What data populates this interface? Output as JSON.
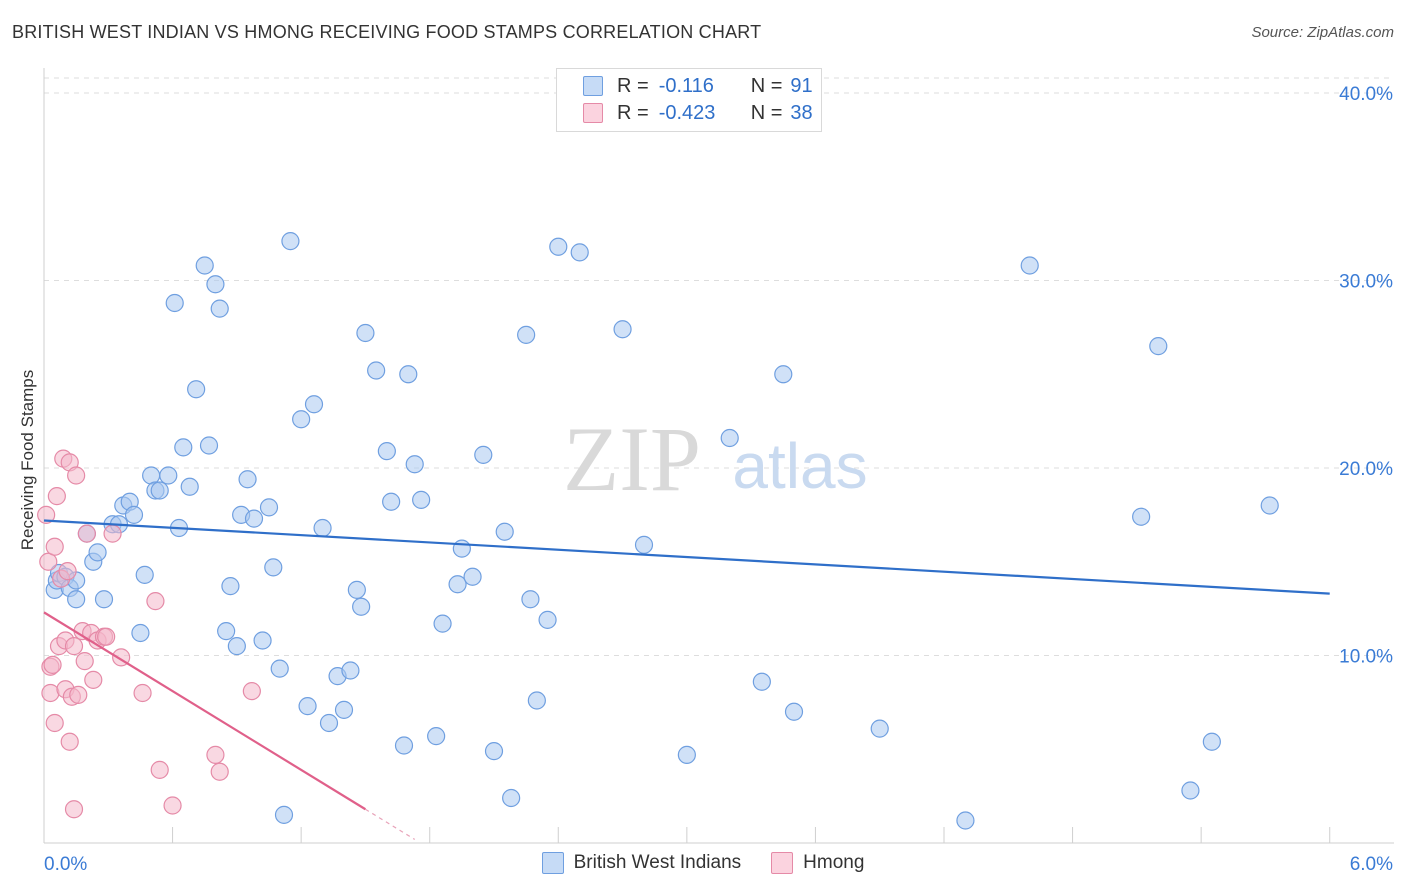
{
  "header": {
    "title": "BRITISH WEST INDIAN VS HMONG RECEIVING FOOD STAMPS CORRELATION CHART",
    "source": "Source: ZipAtlas.com"
  },
  "watermark": {
    "zip": "ZIP",
    "atlas": "atlas"
  },
  "legend_top": {
    "r_label": "R =",
    "n_label": "N =",
    "rows": [
      {
        "r": "-0.116",
        "n": "91",
        "color": "#a9c8f0"
      },
      {
        "r": "-0.423",
        "n": "38",
        "color": "#f4b8ca"
      }
    ]
  },
  "legend_bottom": [
    {
      "label": "British West Indians",
      "color": "#a9c8f0",
      "stroke": "#6f9fe0"
    },
    {
      "label": "Hmong",
      "color": "#f4b8ca",
      "stroke": "#e58aa7"
    }
  ],
  "chart_data": {
    "type": "scatter",
    "title": "BRITISH WEST INDIAN VS HMONG RECEIVING FOOD STAMPS CORRELATION CHART",
    "xlabel": "",
    "ylabel": "Receiving Food Stamps",
    "xlim": [
      0,
      6.3
    ],
    "ylim": [
      0,
      40.8
    ],
    "x_tick_labels": [
      "0.0%",
      "6.0%"
    ],
    "y_ticks": [
      10,
      20,
      30,
      40
    ],
    "y_tick_labels": [
      "10.0%",
      "20.0%",
      "30.0%",
      "40.0%"
    ],
    "grid": true,
    "legend_position": "bottom",
    "series": [
      {
        "name": "British West Indians",
        "color": "#6f9fe0",
        "fill": "#a9c8f0",
        "trend": {
          "x": [
            0,
            6.0
          ],
          "y": [
            17.2,
            13.3
          ],
          "color": "#2f6fc9"
        },
        "points": [
          [
            0.05,
            13.5
          ],
          [
            0.06,
            14.0
          ],
          [
            0.07,
            14.4
          ],
          [
            0.1,
            14.2
          ],
          [
            0.12,
            13.6
          ],
          [
            0.15,
            14.0
          ],
          [
            0.15,
            13.0
          ],
          [
            0.2,
            16.5
          ],
          [
            0.23,
            15.0
          ],
          [
            0.25,
            15.5
          ],
          [
            0.28,
            13.0
          ],
          [
            0.32,
            17.0
          ],
          [
            0.35,
            17.0
          ],
          [
            0.37,
            18.0
          ],
          [
            0.4,
            18.2
          ],
          [
            0.42,
            17.5
          ],
          [
            0.45,
            11.2
          ],
          [
            0.47,
            14.3
          ],
          [
            0.5,
            19.6
          ],
          [
            0.52,
            18.8
          ],
          [
            0.54,
            18.8
          ],
          [
            0.58,
            19.6
          ],
          [
            0.61,
            28.8
          ],
          [
            0.63,
            16.8
          ],
          [
            0.65,
            21.1
          ],
          [
            0.68,
            19.0
          ],
          [
            0.71,
            24.2
          ],
          [
            0.75,
            30.8
          ],
          [
            0.77,
            21.2
          ],
          [
            0.8,
            29.8
          ],
          [
            0.82,
            28.5
          ],
          [
            0.85,
            11.3
          ],
          [
            0.87,
            13.7
          ],
          [
            0.9,
            10.5
          ],
          [
            0.92,
            17.5
          ],
          [
            0.95,
            19.4
          ],
          [
            0.98,
            17.3
          ],
          [
            1.02,
            10.8
          ],
          [
            1.05,
            17.9
          ],
          [
            1.07,
            14.7
          ],
          [
            1.1,
            9.3
          ],
          [
            1.12,
            1.5
          ],
          [
            1.15,
            32.1
          ],
          [
            1.2,
            22.6
          ],
          [
            1.23,
            7.3
          ],
          [
            1.26,
            23.4
          ],
          [
            1.3,
            16.8
          ],
          [
            1.33,
            6.4
          ],
          [
            1.37,
            8.9
          ],
          [
            1.4,
            7.1
          ],
          [
            1.43,
            9.2
          ],
          [
            1.46,
            13.5
          ],
          [
            1.48,
            12.6
          ],
          [
            1.5,
            27.2
          ],
          [
            1.55,
            25.2
          ],
          [
            1.6,
            20.9
          ],
          [
            1.62,
            18.2
          ],
          [
            1.68,
            5.2
          ],
          [
            1.7,
            25.0
          ],
          [
            1.73,
            20.2
          ],
          [
            1.76,
            18.3
          ],
          [
            1.83,
            5.7
          ],
          [
            1.86,
            11.7
          ],
          [
            1.93,
            13.8
          ],
          [
            1.95,
            15.7
          ],
          [
            2.0,
            14.2
          ],
          [
            2.05,
            20.7
          ],
          [
            2.1,
            4.9
          ],
          [
            2.15,
            16.6
          ],
          [
            2.18,
            2.4
          ],
          [
            2.25,
            27.1
          ],
          [
            2.27,
            13.0
          ],
          [
            2.3,
            7.6
          ],
          [
            2.35,
            11.9
          ],
          [
            2.4,
            31.8
          ],
          [
            2.5,
            31.5
          ],
          [
            2.7,
            27.4
          ],
          [
            2.8,
            15.9
          ],
          [
            3.0,
            4.7
          ],
          [
            3.2,
            21.6
          ],
          [
            3.35,
            8.6
          ],
          [
            3.45,
            25.0
          ],
          [
            3.5,
            7.0
          ],
          [
            3.9,
            6.1
          ],
          [
            4.3,
            1.2
          ],
          [
            4.6,
            30.8
          ],
          [
            5.12,
            17.4
          ],
          [
            5.2,
            26.5
          ],
          [
            5.35,
            2.8
          ],
          [
            5.45,
            5.4
          ],
          [
            5.72,
            18.0
          ]
        ]
      },
      {
        "name": "Hmong",
        "color": "#e58aa7",
        "fill": "#f4b8ca",
        "trend": {
          "x": [
            0,
            1.5
          ],
          "y": [
            12.3,
            1.8
          ],
          "color": "#e0608a"
        },
        "points": [
          [
            0.01,
            17.5
          ],
          [
            0.02,
            15.0
          ],
          [
            0.03,
            9.4
          ],
          [
            0.03,
            8.0
          ],
          [
            0.04,
            9.5
          ],
          [
            0.05,
            6.4
          ],
          [
            0.05,
            15.8
          ],
          [
            0.06,
            18.5
          ],
          [
            0.07,
            10.5
          ],
          [
            0.08,
            14.1
          ],
          [
            0.09,
            20.5
          ],
          [
            0.1,
            10.8
          ],
          [
            0.1,
            8.2
          ],
          [
            0.11,
            14.5
          ],
          [
            0.12,
            20.3
          ],
          [
            0.12,
            5.4
          ],
          [
            0.13,
            7.8
          ],
          [
            0.14,
            10.5
          ],
          [
            0.14,
            1.8
          ],
          [
            0.15,
            19.6
          ],
          [
            0.16,
            7.9
          ],
          [
            0.18,
            11.3
          ],
          [
            0.19,
            9.7
          ],
          [
            0.2,
            16.5
          ],
          [
            0.22,
            11.2
          ],
          [
            0.23,
            8.7
          ],
          [
            0.25,
            10.8
          ],
          [
            0.28,
            11.0
          ],
          [
            0.29,
            11.0
          ],
          [
            0.32,
            16.5
          ],
          [
            0.36,
            9.9
          ],
          [
            0.46,
            8.0
          ],
          [
            0.52,
            12.9
          ],
          [
            0.54,
            3.9
          ],
          [
            0.6,
            2.0
          ],
          [
            0.8,
            4.7
          ],
          [
            0.82,
            3.8
          ],
          [
            0.97,
            8.1
          ]
        ]
      }
    ]
  }
}
